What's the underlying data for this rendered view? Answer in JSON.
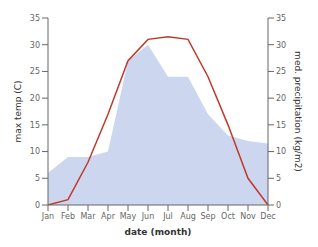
{
  "chart_data": {
    "type": "line",
    "categories": [
      "Jan",
      "Feb",
      "Mar",
      "Apr",
      "May",
      "Jun",
      "Jul",
      "Aug",
      "Sep",
      "Oct",
      "Nov",
      "Dec"
    ],
    "xlabel": "date (month)",
    "ylabel": "max temp (C)",
    "y2label": "med. precipitation (kg/m2)",
    "ylim": [
      0,
      35
    ],
    "yticks": [
      0,
      5,
      10,
      15,
      20,
      25,
      30,
      35
    ],
    "y2lim": [
      0,
      35
    ],
    "y2ticks": [
      0,
      5,
      10,
      15,
      20,
      25,
      30,
      35
    ],
    "grid": false,
    "series": [
      {
        "type": "area",
        "color": "#b8c4e8",
        "axis": "y2",
        "values": [
          6,
          9,
          9,
          10,
          27,
          30,
          24,
          24,
          17,
          13,
          12,
          11.5
        ]
      },
      {
        "type": "line",
        "color": "#c0392b",
        "values": [
          0,
          1,
          8,
          17,
          27,
          31,
          31.5,
          31,
          24,
          15,
          5,
          0
        ]
      }
    ]
  }
}
